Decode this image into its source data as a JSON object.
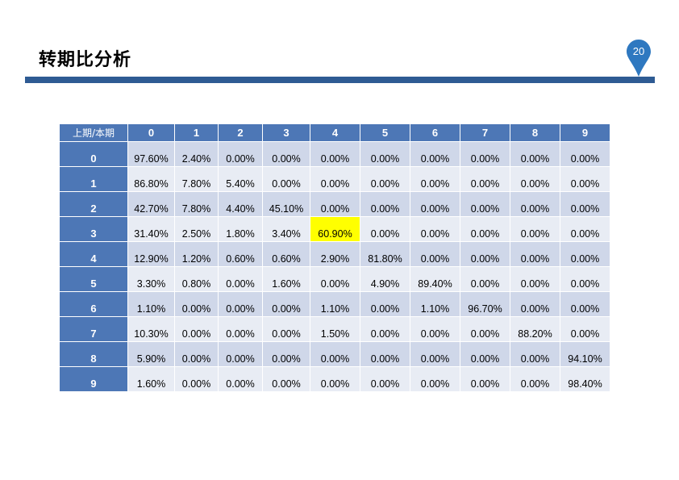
{
  "slide": {
    "title": "转期比分析",
    "page_number": "20",
    "accent_color": "#2e5b93"
  },
  "table": {
    "corner_label": "上期/本期",
    "columns": [
      "0",
      "1",
      "2",
      "3",
      "4",
      "5",
      "6",
      "7",
      "8",
      "9"
    ],
    "highlight_color": "#ffff00",
    "rows": [
      {
        "label": "0",
        "values": [
          "97.60%",
          "2.40%",
          "0.00%",
          "0.00%",
          "0.00%",
          "0.00%",
          "0.00%",
          "0.00%",
          "0.00%",
          "0.00%"
        ]
      },
      {
        "label": "1",
        "values": [
          "86.80%",
          "7.80%",
          "5.40%",
          "0.00%",
          "0.00%",
          "0.00%",
          "0.00%",
          "0.00%",
          "0.00%",
          "0.00%"
        ]
      },
      {
        "label": "2",
        "values": [
          "42.70%",
          "7.80%",
          "4.40%",
          "45.10%",
          "0.00%",
          "0.00%",
          "0.00%",
          "0.00%",
          "0.00%",
          "0.00%"
        ]
      },
      {
        "label": "3",
        "values": [
          "31.40%",
          "2.50%",
          "1.80%",
          "3.40%",
          "60.90%",
          "0.00%",
          "0.00%",
          "0.00%",
          "0.00%",
          "0.00%"
        ],
        "highlight_index": 4
      },
      {
        "label": "4",
        "values": [
          "12.90%",
          "1.20%",
          "0.60%",
          "0.60%",
          "2.90%",
          "81.80%",
          "0.00%",
          "0.00%",
          "0.00%",
          "0.00%"
        ]
      },
      {
        "label": "5",
        "values": [
          "3.30%",
          "0.80%",
          "0.00%",
          "1.60%",
          "0.00%",
          "4.90%",
          "89.40%",
          "0.00%",
          "0.00%",
          "0.00%"
        ]
      },
      {
        "label": "6",
        "values": [
          "1.10%",
          "0.00%",
          "0.00%",
          "0.00%",
          "1.10%",
          "0.00%",
          "1.10%",
          "96.70%",
          "0.00%",
          "0.00%"
        ]
      },
      {
        "label": "7",
        "values": [
          "10.30%",
          "0.00%",
          "0.00%",
          "0.00%",
          "1.50%",
          "0.00%",
          "0.00%",
          "0.00%",
          "88.20%",
          "0.00%"
        ]
      },
      {
        "label": "8",
        "values": [
          "5.90%",
          "0.00%",
          "0.00%",
          "0.00%",
          "0.00%",
          "0.00%",
          "0.00%",
          "0.00%",
          "0.00%",
          "94.10%"
        ]
      },
      {
        "label": "9",
        "values": [
          "1.60%",
          "0.00%",
          "0.00%",
          "0.00%",
          "0.00%",
          "0.00%",
          "0.00%",
          "0.00%",
          "0.00%",
          "98.40%"
        ]
      }
    ]
  }
}
